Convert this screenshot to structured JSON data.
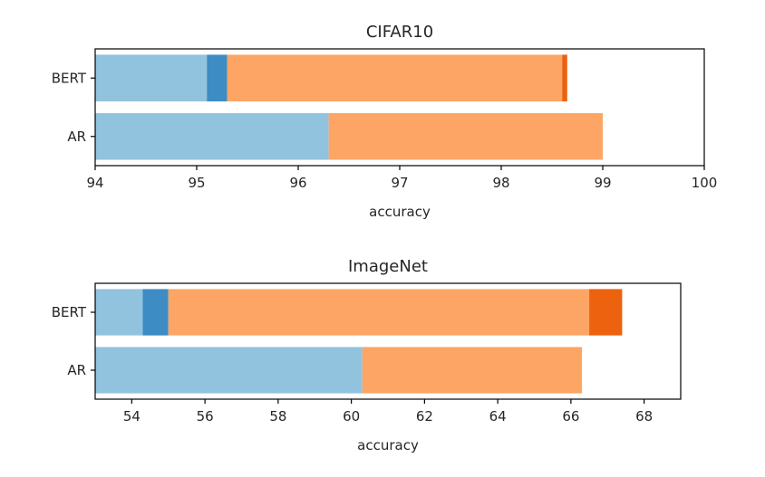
{
  "chart_data": [
    {
      "type": "bar",
      "orientation": "horizontal",
      "stacked": true,
      "title": "CIFAR10",
      "xlabel": "accuracy",
      "ylabel": "",
      "xlim": [
        94,
        100
      ],
      "xticks": [
        "94",
        "95",
        "96",
        "97",
        "98",
        "99",
        "100"
      ],
      "categories": [
        "BERT",
        "AR"
      ],
      "bars": [
        {
          "category": "BERT",
          "segments": [
            {
              "from": 94,
              "to": 95.1,
              "color": "#92c3de"
            },
            {
              "from": 95.1,
              "to": 95.3,
              "color": "#3d8cc4"
            },
            {
              "from": 95.3,
              "to": 98.6,
              "color": "#fda564"
            },
            {
              "from": 98.6,
              "to": 98.65,
              "color": "#ec620f"
            }
          ]
        },
        {
          "category": "AR",
          "segments": [
            {
              "from": 94,
              "to": 96.3,
              "color": "#92c3de"
            },
            {
              "from": 96.3,
              "to": 99.0,
              "color": "#fda564"
            }
          ]
        }
      ],
      "grid": false,
      "legend": "none"
    },
    {
      "type": "bar",
      "orientation": "horizontal",
      "stacked": true,
      "title": "ImageNet",
      "xlabel": "accuracy",
      "ylabel": "",
      "xlim": [
        53,
        69
      ],
      "xticks": [
        "54",
        "56",
        "58",
        "60",
        "62",
        "64",
        "66",
        "68"
      ],
      "categories": [
        "BERT",
        "AR"
      ],
      "bars": [
        {
          "category": "BERT",
          "segments": [
            {
              "from": 53,
              "to": 54.3,
              "color": "#92c3de"
            },
            {
              "from": 54.3,
              "to": 55.0,
              "color": "#3d8cc4"
            },
            {
              "from": 55.0,
              "to": 66.5,
              "color": "#fda564"
            },
            {
              "from": 66.5,
              "to": 67.4,
              "color": "#ec620f"
            }
          ]
        },
        {
          "category": "AR",
          "segments": [
            {
              "from": 53,
              "to": 60.3,
              "color": "#92c3de"
            },
            {
              "from": 60.3,
              "to": 66.3,
              "color": "#fda564"
            }
          ]
        }
      ],
      "grid": false,
      "legend": "none"
    }
  ]
}
